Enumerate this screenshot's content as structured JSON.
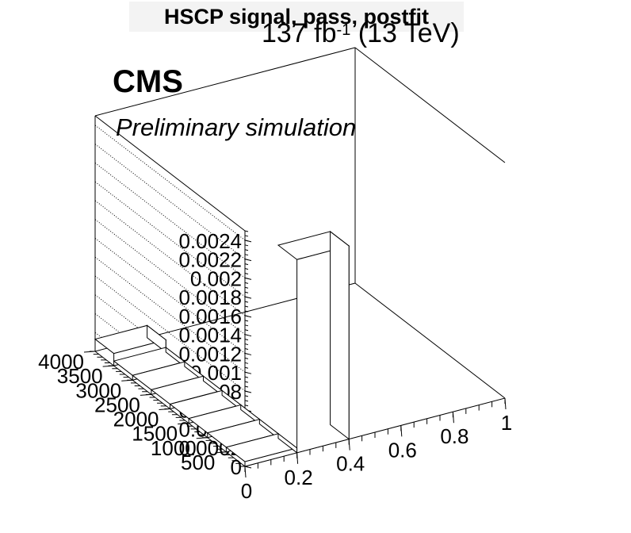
{
  "chart_data": {
    "type": "lego3d",
    "title": "HSCP signal, pass, postfit",
    "lumi": {
      "value": "137 fb",
      "sup": "-1",
      "energy": "(13 TeV)"
    },
    "experiment": "CMS",
    "subtitle": "Preliminary simulation",
    "z_axis": {
      "range": [
        0,
        0.0025
      ],
      "ticks": [
        0,
        0.0002,
        0.0004,
        0.0006,
        0.0008,
        0.001,
        0.0012,
        0.0014,
        0.0016,
        0.0018,
        0.002,
        0.0022,
        0.0024
      ],
      "tick_labels": [
        "0",
        "0.0002",
        "0.0004",
        "0.0006",
        "0.0008",
        "0.001",
        "0.0012",
        "0.0014",
        "0.0016",
        "0.0018",
        "0.002",
        "0.0022",
        "0.0024"
      ],
      "grid": true
    },
    "x_axis": {
      "range": [
        0,
        1
      ],
      "tick_labels": [
        "0",
        "0.2",
        "0.4",
        "0.6",
        "0.8",
        "1"
      ],
      "ticks": [
        0,
        0.2,
        0.4,
        0.6,
        0.8,
        1
      ]
    },
    "y_axis": {
      "range": [
        0,
        4000
      ],
      "tick_labels": [
        "500",
        "1000",
        "1500",
        "2000",
        "2500",
        "3000",
        "3500",
        "4000"
      ],
      "ticks": [
        500,
        1000,
        1500,
        2000,
        2500,
        3000,
        3500,
        4000
      ]
    },
    "bins": [
      {
        "x": [
          0,
          0.2
        ],
        "y": [
          0,
          500
        ],
        "z": 5e-05
      },
      {
        "x": [
          0,
          0.2
        ],
        "y": [
          500,
          1000
        ],
        "z": 5e-05
      },
      {
        "x": [
          0,
          0.2
        ],
        "y": [
          1000,
          1500
        ],
        "z": 5e-05
      },
      {
        "x": [
          0,
          0.2
        ],
        "y": [
          1500,
          2000
        ],
        "z": 5e-05
      },
      {
        "x": [
          0,
          0.2
        ],
        "y": [
          2000,
          2500
        ],
        "z": 5e-05
      },
      {
        "x": [
          0,
          0.2
        ],
        "y": [
          2500,
          3000
        ],
        "z": 5e-05
      },
      {
        "x": [
          0,
          0.2
        ],
        "y": [
          3000,
          3500
        ],
        "z": 5e-05
      },
      {
        "x": [
          0,
          0.2
        ],
        "y": [
          3500,
          4000
        ],
        "z": 0.00013
      },
      {
        "x": [
          0.2,
          0.4
        ],
        "y": [
          0,
          500
        ],
        "z": 0.00205
      }
    ]
  }
}
